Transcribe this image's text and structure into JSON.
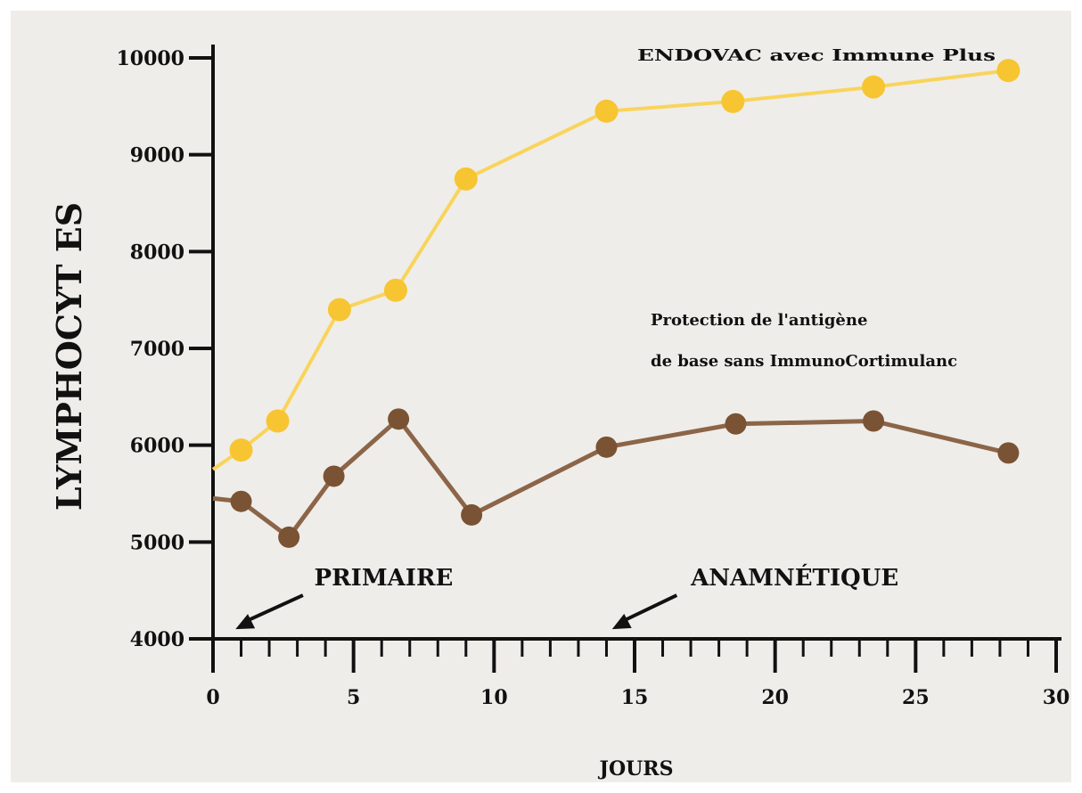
{
  "chart_data": {
    "type": "line",
    "title": "",
    "xlabel": "JOURS",
    "ylabel": "LYMPHOCYT ES",
    "xlim": [
      0,
      30
    ],
    "ylim": [
      4000,
      10000
    ],
    "x_ticks": [
      0,
      5,
      10,
      15,
      20,
      25,
      30
    ],
    "x_tick_labels": [
      "0",
      "5",
      "10",
      "15",
      "20",
      "25",
      "30"
    ],
    "y_ticks": [
      4000,
      5000,
      6000,
      7000,
      8000,
      9000,
      10000
    ],
    "y_tick_labels": [
      "4000",
      "5000",
      "6000",
      "7000",
      "8000",
      "9000",
      "10000"
    ],
    "x_minor_step": 1,
    "grid": false,
    "series": [
      {
        "label": "ENDOVAC avec Immune Plus",
        "color": "#f7c531",
        "line_color": "#f9d45c",
        "start": [
          0,
          5750
        ],
        "x": [
          1,
          2.3,
          4.5,
          6.5,
          9,
          14,
          18.5,
          23.5,
          28.3
        ],
        "values": [
          5950,
          6250,
          7400,
          7600,
          8750,
          9450,
          9550,
          9700,
          9870
        ]
      },
      {
        "label": "Protection de l'antigène de base sans ImmunoCortimulanc",
        "color": "#7a5334",
        "line_color": "#8c6548",
        "start": [
          0,
          5450
        ],
        "x": [
          1,
          2.7,
          4.3,
          6.6,
          9.2,
          14,
          18.6,
          23.5,
          28.3
        ],
        "values": [
          5420,
          5050,
          5680,
          6270,
          5280,
          5980,
          6220,
          6250,
          5920
        ]
      }
    ],
    "annotations": [
      {
        "text": "PRIMAIRE",
        "x": 3.6,
        "y": 4550,
        "arrow_from": [
          3.2,
          4450
        ],
        "arrow_to": [
          0.8,
          4100
        ]
      },
      {
        "text": "ANAMNÉTIQUE",
        "x": 17,
        "y": 4550,
        "arrow_from": [
          16.5,
          4450
        ],
        "arrow_to": [
          14.2,
          4100
        ]
      }
    ]
  }
}
